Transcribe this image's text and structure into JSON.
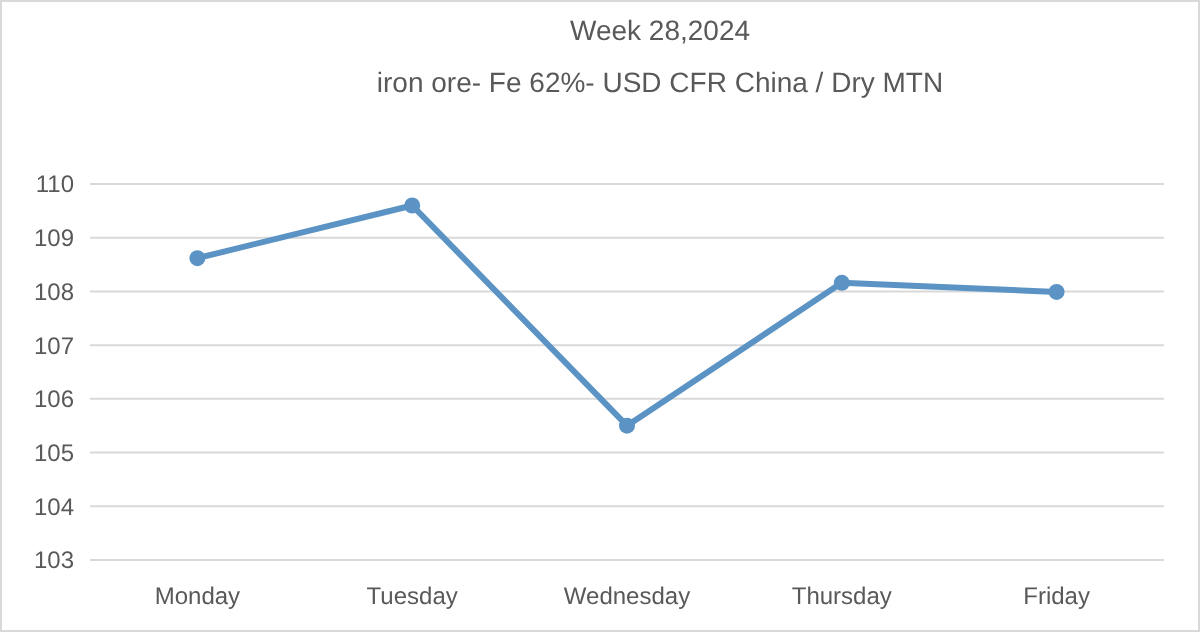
{
  "chart_data": {
    "type": "line",
    "title": "Week  28,2024",
    "subtitle": "iron ore- Fe 62%- USD CFR China / Dry MTN",
    "categories": [
      "Monday",
      "Tuesday",
      "Wednesday",
      "Thursday",
      "Friday"
    ],
    "series": [
      {
        "color": "#5b93c4",
        "values": [
          108.62,
          109.6,
          105.5,
          108.16,
          107.99
        ]
      }
    ],
    "ylim": [
      103,
      110
    ],
    "yticks": [
      103,
      104,
      105,
      106,
      107,
      108,
      109,
      110
    ],
    "grid": "y",
    "marker": "circle",
    "line_style": "solid"
  }
}
